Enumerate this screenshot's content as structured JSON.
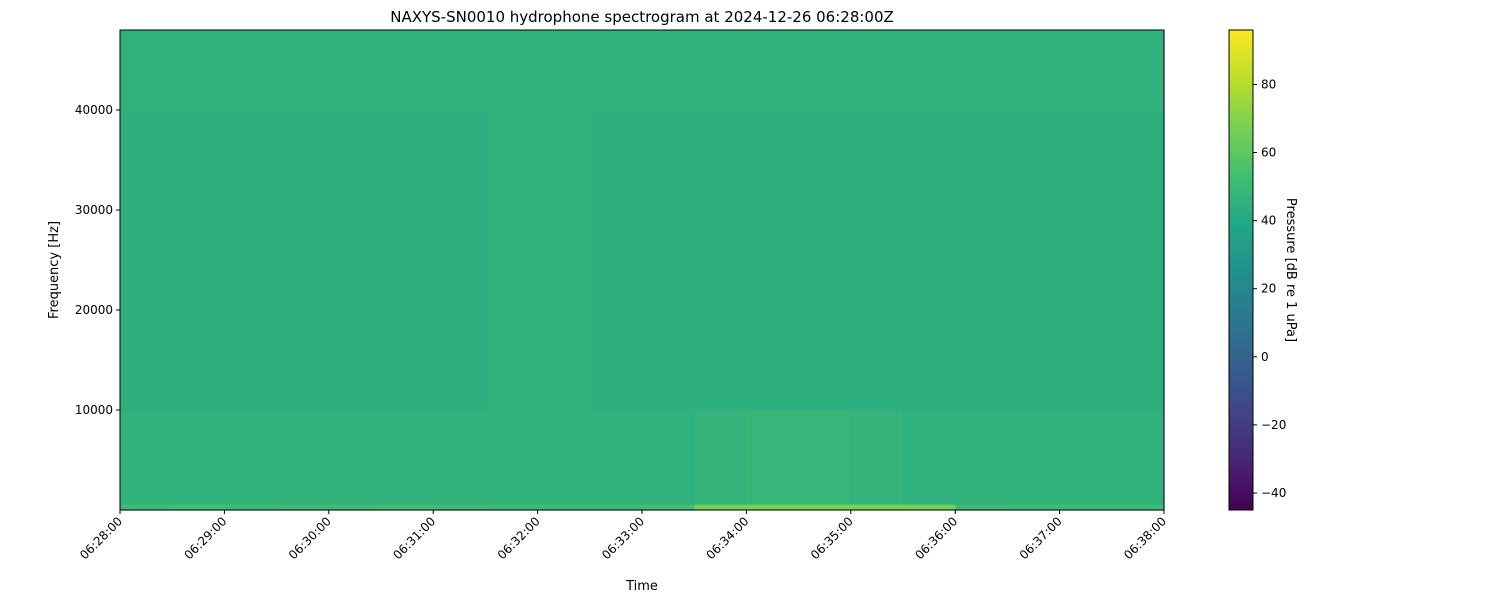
{
  "chart_data": {
    "type": "heatmap",
    "title": "NAXYS-SN0010 hydrophone spectrogram at 2024-12-26 06:28:00Z",
    "xlabel": "Time",
    "ylabel": "Frequency [Hz]",
    "colorbar_label": "Pressure [dB re 1 uPa]",
    "colormap": "viridis",
    "color_range": [
      -45,
      96
    ],
    "colorbar_ticks": [
      -40,
      -20,
      0,
      20,
      40,
      60,
      80
    ],
    "colorbar_tick_labels": [
      "−40",
      "−20",
      "0",
      "20",
      "40",
      "60",
      "80"
    ],
    "ylim": [
      0,
      48000
    ],
    "yticks": [
      10000,
      20000,
      30000,
      40000
    ],
    "ytick_labels": [
      "10000",
      "20000",
      "30000",
      "40000"
    ],
    "xlim": [
      "06:28:00",
      "06:38:00"
    ],
    "xtick_labels": [
      "06:28:00",
      "06:29:00",
      "06:30:00",
      "06:31:00",
      "06:32:00",
      "06:33:00",
      "06:34:00",
      "06:35:00",
      "06:36:00",
      "06:37:00",
      "06:38:00"
    ],
    "grid": false,
    "time_bins": [
      "06:28:00",
      "06:28:30",
      "06:29:00",
      "06:29:30",
      "06:30:00",
      "06:30:30",
      "06:31:00",
      "06:31:30",
      "06:32:00",
      "06:32:30",
      "06:33:00",
      "06:33:30",
      "06:34:00",
      "06:34:30",
      "06:35:00",
      "06:35:30",
      "06:36:00",
      "06:36:30",
      "06:37:00",
      "06:37:30"
    ],
    "freq_bin_edges_hz": [
      0,
      600,
      10000,
      40000,
      48000
    ],
    "values_db": [
      [
        52,
        53,
        52,
        52,
        52,
        53,
        52,
        52,
        52,
        52,
        53,
        66,
        68,
        68,
        68,
        66,
        52,
        52,
        52,
        52
      ],
      [
        46,
        46,
        46,
        45,
        45,
        45,
        45,
        46,
        46,
        46,
        45,
        47,
        48,
        48,
        47,
        45,
        45,
        46,
        46,
        46
      ],
      [
        44,
        44,
        44,
        44,
        44,
        44,
        44,
        45,
        45,
        44,
        44,
        44,
        44,
        44,
        44,
        44,
        44,
        44,
        44,
        44
      ],
      [
        45,
        45,
        45,
        45,
        45,
        45,
        45,
        45,
        45,
        45,
        45,
        45,
        45,
        45,
        45,
        45,
        45,
        45,
        45,
        45
      ]
    ]
  }
}
